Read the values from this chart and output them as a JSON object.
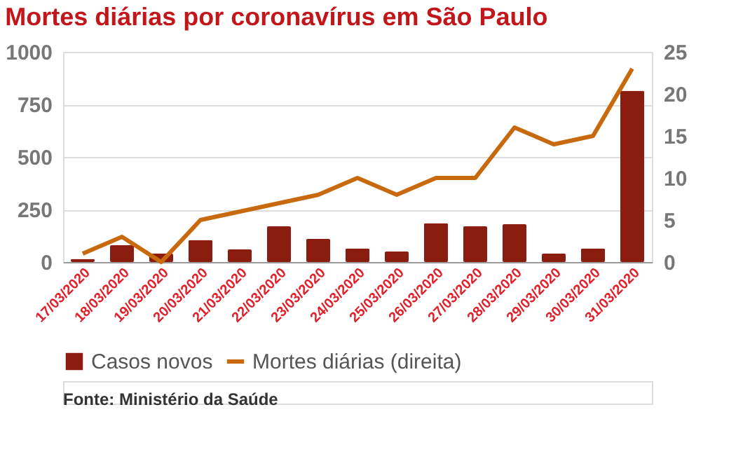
{
  "chart_data": {
    "type": "bar",
    "title": "Mortes diárias por coronavírus em São Paulo",
    "categories": [
      "17/03/2020",
      "18/03/2020",
      "19/03/2020",
      "20/03/2020",
      "21/03/2020",
      "22/03/2020",
      "23/03/2020",
      "24/03/2020",
      "25/03/2020",
      "26/03/2020",
      "27/03/2020",
      "28/03/2020",
      "29/03/2020",
      "30/03/2020",
      "31/03/2020"
    ],
    "series": [
      {
        "name": "Casos novos",
        "color": "#8b1c10",
        "values": [
          15,
          80,
          40,
          105,
          60,
          170,
          110,
          65,
          50,
          185,
          170,
          180,
          40,
          65,
          815
        ]
      },
      {
        "name": "Mortes diárias (direita)",
        "type": "line",
        "axis": "y2",
        "color": "#c8690e",
        "values": [
          1,
          3,
          0,
          5,
          6,
          7,
          8,
          10,
          8,
          10,
          10,
          16,
          14,
          15,
          23
        ]
      }
    ],
    "ylim": [
      0,
      1000
    ],
    "yticks": [
      0,
      250,
      500,
      750,
      1000
    ],
    "y2lim": [
      0,
      25
    ],
    "y2ticks": [
      0,
      5,
      10,
      15,
      20,
      25
    ],
    "grid": "y",
    "legend": "bottom",
    "line_style": "solid",
    "marker": "none",
    "annotations": [
      "Fonte: Ministério da Saúde"
    ]
  }
}
